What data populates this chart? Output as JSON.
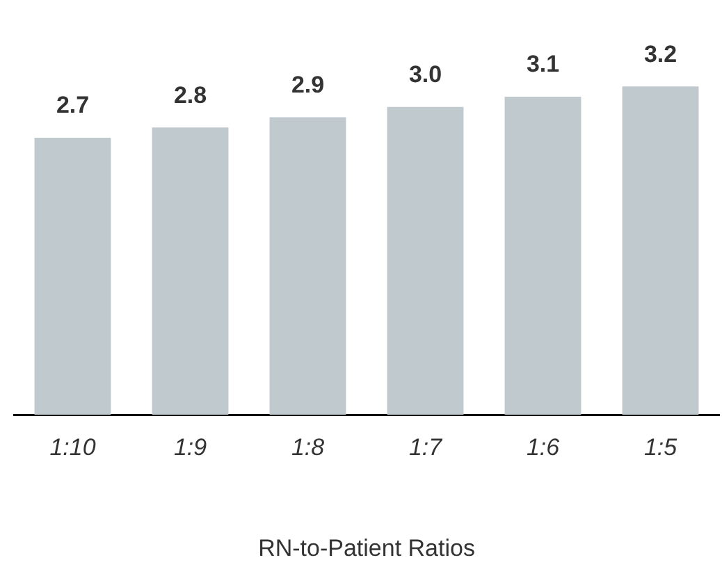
{
  "chart_data": {
    "type": "bar",
    "xlabel": "RN-to-Patient Ratios",
    "categories": [
      "1:10",
      "1:9",
      "1:8",
      "1:7",
      "1:6",
      "1:5"
    ],
    "values": [
      2.7,
      2.8,
      2.9,
      3.0,
      3.1,
      3.2
    ],
    "value_labels": [
      "2.7",
      "2.8",
      "2.9",
      "3.0",
      "3.1",
      "3.2"
    ],
    "color": "#c0c9ce",
    "tick_labels": "x",
    "grid": false,
    "legend": false
  }
}
